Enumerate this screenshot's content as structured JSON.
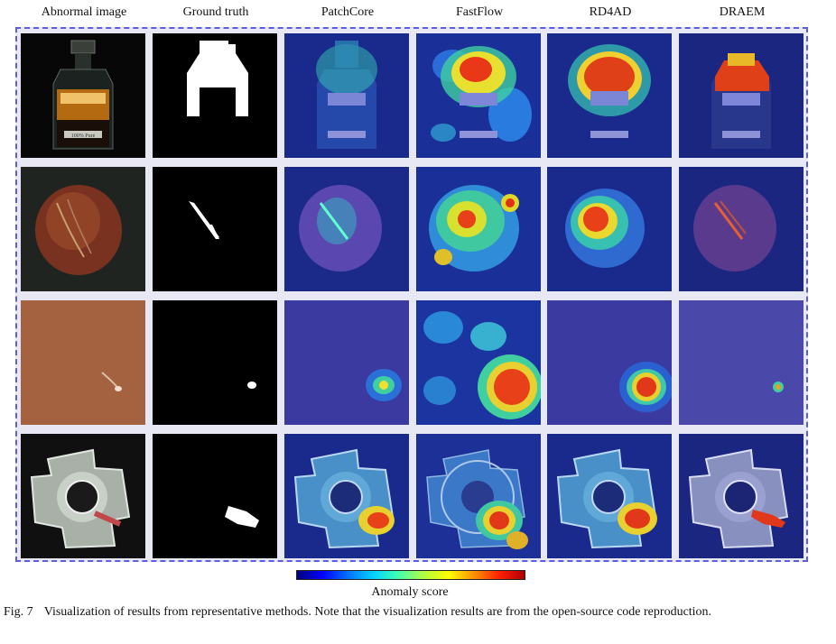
{
  "columns": [
    "Abnormal image",
    "Ground truth",
    "PatchCore",
    "FastFlow",
    "RD4AD",
    "DRAEM"
  ],
  "colorbar": {
    "label": "Anomaly score",
    "colors": [
      "#00007a",
      "#0000ff",
      "#0070ff",
      "#00d0ff",
      "#40ffb0",
      "#b0ff40",
      "#ffff00",
      "#ff9000",
      "#ff2000",
      "#b00000"
    ]
  },
  "caption": {
    "figure": "Fig. 7",
    "text": "Visualization of results from representative methods. Note that the visualization results are from the open-source code reproduction."
  },
  "rows": [
    {
      "object": "bottle",
      "label_text": "100% Pure"
    },
    {
      "object": "hazelnut"
    },
    {
      "object": "leather"
    },
    {
      "object": "metal part"
    }
  ]
}
